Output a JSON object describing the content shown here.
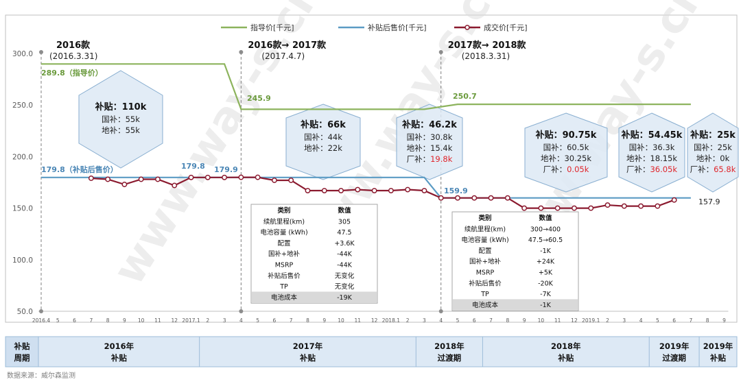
{
  "chart_data": {
    "type": "line",
    "title": "",
    "xlabel": "",
    "ylabel": "",
    "ylim": [
      50,
      300
    ],
    "yticks": [
      "300.0",
      "250.0",
      "200.0",
      "150.0",
      "100.0",
      "50.0"
    ],
    "x_tick_labels": [
      "2016.4",
      "5",
      "6",
      "7",
      "8",
      "9",
      "10",
      "11",
      "12",
      "2017.1",
      "2",
      "3",
      "4",
      "5",
      "6",
      "7",
      "8",
      "9",
      "10",
      "11",
      "12",
      "2018.1",
      "2",
      "3",
      "4",
      "5",
      "6",
      "7",
      "8",
      "9",
      "10",
      "11",
      "12",
      "2019.1",
      "2",
      "3",
      "4",
      "5",
      "6",
      "7",
      "8",
      "9"
    ],
    "legend": {
      "placement": "top-center",
      "items": [
        "指导价[千元]",
        "补贴后售价[千元]",
        "成交价[千元]"
      ]
    },
    "colors": {
      "msrp": "#8cb35c",
      "subsidized": "#5b9bc4",
      "transaction": "#8b1a2f",
      "msrp_label": "#6a9a3c",
      "sub_label": "#4a86b5",
      "red": "#e0242a",
      "band_bg": "#dde9f5",
      "band_border": "#88aed0"
    },
    "series": [
      {
        "name": "指导价[千元]",
        "key": "msrp",
        "points": [
          [
            0,
            289.8
          ],
          [
            11,
            289.8
          ],
          [
            12,
            245.9
          ],
          [
            23,
            245.9
          ],
          [
            25,
            250.7
          ],
          [
            39,
            250.7
          ]
        ]
      },
      {
        "name": "补贴后售价[千元]",
        "key": "subsidized",
        "points": [
          [
            0,
            179.8
          ],
          [
            23,
            179.8
          ],
          [
            24,
            159.9
          ],
          [
            39,
            159.9
          ]
        ]
      },
      {
        "name": "成交价[千元]",
        "key": "transaction",
        "points": [
          [
            3,
            179
          ],
          [
            4,
            178
          ],
          [
            5,
            173
          ],
          [
            6,
            178
          ],
          [
            7,
            178
          ],
          [
            8,
            172
          ],
          [
            9,
            179.8
          ],
          [
            10,
            179.8
          ],
          [
            11,
            179.8
          ],
          [
            12,
            179.9
          ],
          [
            13,
            179.9
          ],
          [
            14,
            177
          ],
          [
            15,
            177
          ],
          [
            16,
            167
          ],
          [
            17,
            167
          ],
          [
            18,
            167
          ],
          [
            19,
            168
          ],
          [
            20,
            167
          ],
          [
            21,
            167
          ],
          [
            22,
            168
          ],
          [
            23,
            167
          ],
          [
            24,
            159.9
          ],
          [
            25,
            159.9
          ],
          [
            26,
            159.9
          ],
          [
            27,
            159.9
          ],
          [
            28,
            159.9
          ],
          [
            29,
            150
          ],
          [
            30,
            150
          ],
          [
            31,
            150
          ],
          [
            32,
            150
          ],
          [
            33,
            150
          ],
          [
            34,
            153
          ],
          [
            35,
            152
          ],
          [
            36,
            152
          ],
          [
            37,
            152
          ],
          [
            38,
            157.9
          ]
        ]
      }
    ],
    "annotations": {
      "msrp_start": "289.8（指导价）",
      "msrp_2017": "245.9",
      "msrp_2018": "250.7",
      "sub_start": "179.8（补贴后售价）",
      "tp_2017_1": "179.8",
      "tp_2017_4": "179.9",
      "sub_2018": "159.9",
      "tp_end": "157.9"
    },
    "versions": [
      {
        "x": 0,
        "title": "2016款",
        "date": "(2016.3.31)"
      },
      {
        "x": 12,
        "title": "2016款→ 2017款",
        "date": "(2017.4.7)"
      },
      {
        "x": 24,
        "title": "2017款→ 2018款",
        "date": "(2018.3.31)"
      }
    ],
    "subsidy_boxes": [
      {
        "title": "补贴：110k",
        "lines": [
          {
            "t": "国补：55k"
          },
          {
            "t": "地补：55k"
          }
        ]
      },
      {
        "title": "补贴：66k",
        "lines": [
          {
            "t": "国补：44k"
          },
          {
            "t": "地补：22k"
          }
        ]
      },
      {
        "title": "补贴：46.2k",
        "lines": [
          {
            "t": "国补：30.8k"
          },
          {
            "t": "地补：15.4k"
          },
          {
            "t": "厂补：",
            "v": "19.8k"
          }
        ]
      },
      {
        "title": "补贴：90.75k",
        "lines": [
          {
            "t": "国补：60.5k"
          },
          {
            "t": "地补：30.25k"
          },
          {
            "t": "厂补：",
            "v": "0.05k"
          }
        ]
      },
      {
        "title": "补贴：54.45k",
        "lines": [
          {
            "t": "国补：36.3k"
          },
          {
            "t": "地补：18.15k"
          },
          {
            "t": "厂补：",
            "v": "36.05k"
          }
        ]
      },
      {
        "title": "补贴：25k",
        "lines": [
          {
            "t": "国补：25k"
          },
          {
            "t": "地补：0k"
          },
          {
            "t": "厂补：",
            "v": "65.8k"
          }
        ]
      }
    ],
    "change_tables": [
      {
        "header": [
          "类别",
          "数值"
        ],
        "rows": [
          [
            "续航里程(km)",
            "305"
          ],
          [
            "电池容量 (kWh)",
            "47.5"
          ],
          [
            "配置",
            "+3.6K"
          ],
          [
            "国补+地补",
            "-44K"
          ],
          [
            "MSRP",
            "-44K"
          ],
          [
            "补贴后售价",
            "无变化"
          ],
          [
            "TP",
            "无变化"
          ],
          [
            "电池成本",
            "-19K"
          ]
        ]
      },
      {
        "header": [
          "类别",
          "数值"
        ],
        "rows": [
          [
            "续航里程(km)",
            "300→400"
          ],
          [
            "电池容量 (kWh)",
            "47.5→60.5"
          ],
          [
            "配置",
            "-1K"
          ],
          [
            "国补+地补",
            "+24K"
          ],
          [
            "MSRP",
            "+5K"
          ],
          [
            "补贴后售价",
            "-20K"
          ],
          [
            "TP",
            "-7K"
          ],
          [
            "电池成本",
            "-1K"
          ]
        ]
      }
    ],
    "period_bar": {
      "head": [
        "补贴",
        "周期"
      ],
      "periods": [
        {
          "label": [
            "2016年",
            "补贴"
          ],
          "from": -0.5,
          "to": 9.5
        },
        {
          "label": [
            "2017年",
            "补贴"
          ],
          "from": 9.5,
          "to": 22.5
        },
        {
          "label": [
            "2018年",
            "过渡期"
          ],
          "from": 22.5,
          "to": 26.5
        },
        {
          "label": [
            "2018年",
            "补贴"
          ],
          "from": 26.5,
          "to": 36.5
        },
        {
          "label": [
            "2019年",
            "过渡期"
          ],
          "from": 36.5,
          "to": 39.5
        },
        {
          "label": [
            "2019年",
            "补贴"
          ],
          "from": 39.5,
          "to": 41.5
        }
      ]
    },
    "source": "数据来源：威尔森监测"
  }
}
